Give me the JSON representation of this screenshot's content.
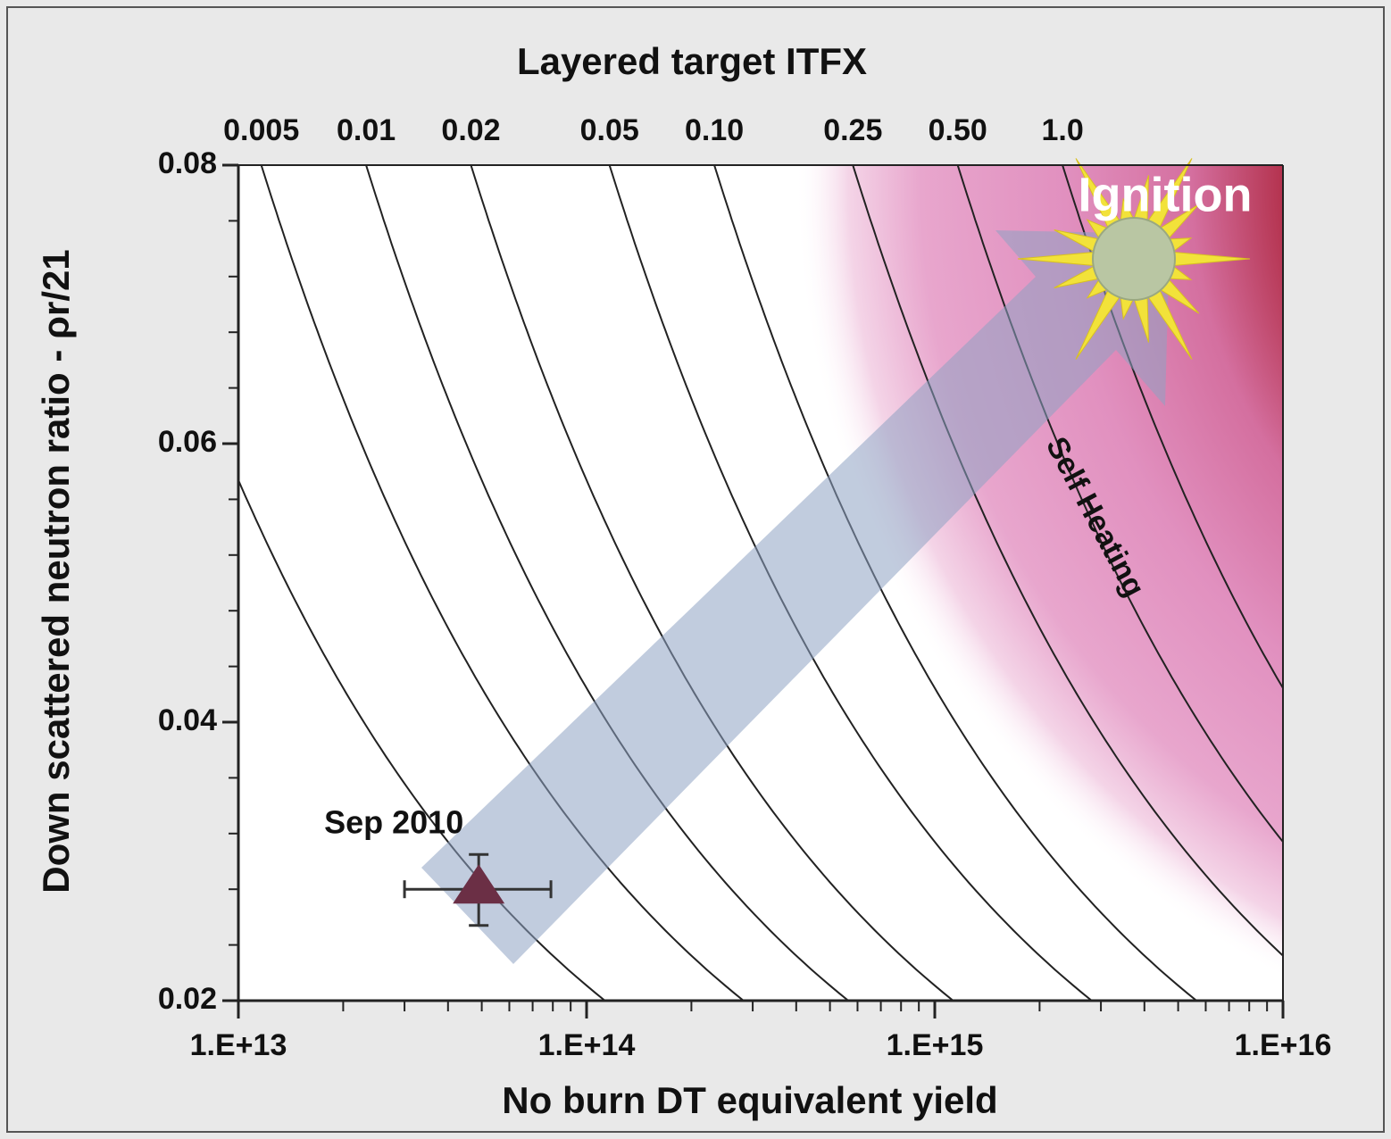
{
  "chart_data": {
    "type": "scatter",
    "title": "Layered target ITFX",
    "x_label": "No burn DT equivalent yield",
    "y_label": "Down scattered neutron ratio - ρr/21",
    "x_log": true,
    "xlim": [
      10000000000000.0,
      1e+16
    ],
    "xticks": [
      {
        "value": 10000000000000.0,
        "label": "1.E+13"
      },
      {
        "value": 100000000000000.0,
        "label": "1.E+14"
      },
      {
        "value": 1000000000000000.0,
        "label": "1.E+15"
      },
      {
        "value": 1e+16,
        "label": "1.E+16"
      }
    ],
    "xminorticks": [
      20000000000000.0,
      30000000000000.0,
      40000000000000.0,
      50000000000000.0,
      60000000000000.0,
      70000000000000.0,
      80000000000000.0,
      90000000000000.0,
      200000000000000.0,
      300000000000000.0,
      400000000000000.0,
      500000000000000.0,
      600000000000000.0,
      700000000000000.0,
      800000000000000.0,
      900000000000000.0,
      2000000000000000.0,
      3000000000000000.0,
      4000000000000000.0,
      5000000000000000.0,
      6000000000000000.0,
      7000000000000000.0,
      8000000000000000.0,
      9000000000000000.0
    ],
    "ylim": [
      0.02,
      0.08
    ],
    "yticks": [
      0.02,
      0.04,
      0.06,
      0.08
    ],
    "yminorticks": [
      0.024,
      0.028,
      0.032,
      0.036,
      0.044,
      0.048,
      0.052,
      0.056,
      0.064,
      0.068,
      0.072,
      0.076
    ],
    "itfx_ticks": [
      0.005,
      0.01,
      0.02,
      0.05,
      {
        "value": 0.1,
        "label": "0.10"
      },
      0.25,
      {
        "value": 0.5,
        "label": "0.50"
      },
      {
        "value": 1,
        "label": "1.0"
      }
    ],
    "contours": [
      0.002,
      0.005,
      0.01,
      0.02,
      0.05,
      0.1,
      0.25,
      0.5,
      1
    ],
    "series": [
      {
        "name": "Sep 2010",
        "color": "#6b2f45",
        "x": [
          49000000000000.0
        ],
        "values": [
          0.028
        ],
        "x_low": [
          30000000000000.0
        ],
        "x_high": [
          79000000000000.0
        ],
        "y_low": [
          0.0254
        ],
        "y_high": [
          0.0305
        ]
      }
    ],
    "annotations": [
      "Ignition",
      "Self Heating"
    ]
  }
}
